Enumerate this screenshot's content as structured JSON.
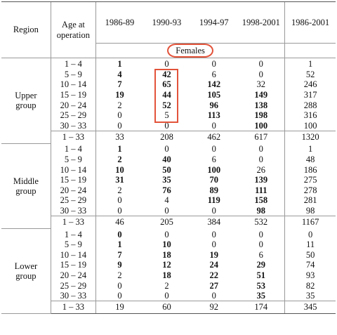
{
  "header": {
    "region": "Region",
    "age": "Age at operation",
    "periods": [
      "1986-89",
      "1990-93",
      "1994-97",
      "1998-2001",
      "1986-2001"
    ],
    "subheader": "Females"
  },
  "groups": [
    {
      "name": "Upper group",
      "rows": [
        {
          "age": "1 – 4",
          "vals": [
            "1",
            "0",
            "0",
            "0",
            "1"
          ],
          "bold": [
            true,
            false,
            false,
            false,
            false
          ]
        },
        {
          "age": "5 – 9",
          "vals": [
            "4",
            "42",
            "6",
            "0",
            "52"
          ],
          "bold": [
            true,
            true,
            false,
            false,
            false
          ]
        },
        {
          "age": "10 – 14",
          "vals": [
            "7",
            "65",
            "142",
            "32",
            "246"
          ],
          "bold": [
            true,
            true,
            true,
            false,
            false
          ]
        },
        {
          "age": "15 – 19",
          "vals": [
            "19",
            "44",
            "105",
            "149",
            "317"
          ],
          "bold": [
            true,
            true,
            true,
            true,
            false
          ]
        },
        {
          "age": "20 – 24",
          "vals": [
            "2",
            "52",
            "96",
            "138",
            "288"
          ],
          "bold": [
            false,
            true,
            true,
            true,
            false
          ]
        },
        {
          "age": "25 – 29",
          "vals": [
            "0",
            "5",
            "113",
            "198",
            "316"
          ],
          "bold": [
            false,
            false,
            true,
            true,
            false
          ]
        },
        {
          "age": "30 – 33",
          "vals": [
            "0",
            "0",
            "0",
            "100",
            "100"
          ],
          "bold": [
            false,
            false,
            false,
            true,
            false
          ]
        }
      ],
      "total": {
        "age": "1 – 33",
        "vals": [
          "33",
          "208",
          "462",
          "617",
          "1320"
        ]
      }
    },
    {
      "name": "Middle group",
      "rows": [
        {
          "age": "1 – 4",
          "vals": [
            "1",
            "0",
            "0",
            "0",
            "1"
          ],
          "bold": [
            true,
            false,
            false,
            false,
            false
          ]
        },
        {
          "age": "5 – 9",
          "vals": [
            "2",
            "40",
            "6",
            "0",
            "48"
          ],
          "bold": [
            true,
            true,
            false,
            false,
            false
          ]
        },
        {
          "age": "10 – 14",
          "vals": [
            "10",
            "50",
            "100",
            "26",
            "186"
          ],
          "bold": [
            true,
            true,
            true,
            false,
            false
          ]
        },
        {
          "age": "15 – 19",
          "vals": [
            "31",
            "35",
            "70",
            "139",
            "275"
          ],
          "bold": [
            true,
            true,
            true,
            true,
            false
          ]
        },
        {
          "age": "20 – 24",
          "vals": [
            "2",
            "76",
            "89",
            "111",
            "278"
          ],
          "bold": [
            false,
            true,
            true,
            true,
            false
          ]
        },
        {
          "age": "25 – 29",
          "vals": [
            "0",
            "4",
            "119",
            "158",
            "281"
          ],
          "bold": [
            false,
            false,
            true,
            true,
            false
          ]
        },
        {
          "age": "30 – 33",
          "vals": [
            "0",
            "0",
            "0",
            "98",
            "98"
          ],
          "bold": [
            false,
            false,
            false,
            true,
            false
          ]
        }
      ],
      "total": {
        "age": "1 – 33",
        "vals": [
          "46",
          "205",
          "384",
          "532",
          "1167"
        ]
      }
    },
    {
      "name": "Lower group",
      "rows": [
        {
          "age": "1 – 4",
          "vals": [
            "0",
            "0",
            "0",
            "0",
            "0"
          ],
          "bold": [
            true,
            false,
            false,
            false,
            false
          ]
        },
        {
          "age": "5 – 9",
          "vals": [
            "1",
            "10",
            "0",
            "0",
            "11"
          ],
          "bold": [
            true,
            true,
            false,
            false,
            false
          ]
        },
        {
          "age": "10 – 14",
          "vals": [
            "7",
            "18",
            "19",
            "6",
            "50"
          ],
          "bold": [
            true,
            true,
            true,
            false,
            false
          ]
        },
        {
          "age": "15 – 19",
          "vals": [
            "9",
            "12",
            "24",
            "29",
            "74"
          ],
          "bold": [
            true,
            true,
            true,
            true,
            false
          ]
        },
        {
          "age": "20 – 24",
          "vals": [
            "2",
            "18",
            "22",
            "51",
            "93"
          ],
          "bold": [
            false,
            true,
            true,
            true,
            false
          ]
        },
        {
          "age": "25 – 29",
          "vals": [
            "0",
            "2",
            "27",
            "53",
            "82"
          ],
          "bold": [
            false,
            false,
            true,
            true,
            false
          ]
        },
        {
          "age": "30 – 33",
          "vals": [
            "0",
            "0",
            "0",
            "35",
            "35"
          ],
          "bold": [
            false,
            false,
            false,
            true,
            false
          ]
        }
      ],
      "total": {
        "age": "1 – 33",
        "vals": [
          "19",
          "60",
          "92",
          "174",
          "345"
        ]
      }
    }
  ],
  "annotation_color": "#e2533a"
}
